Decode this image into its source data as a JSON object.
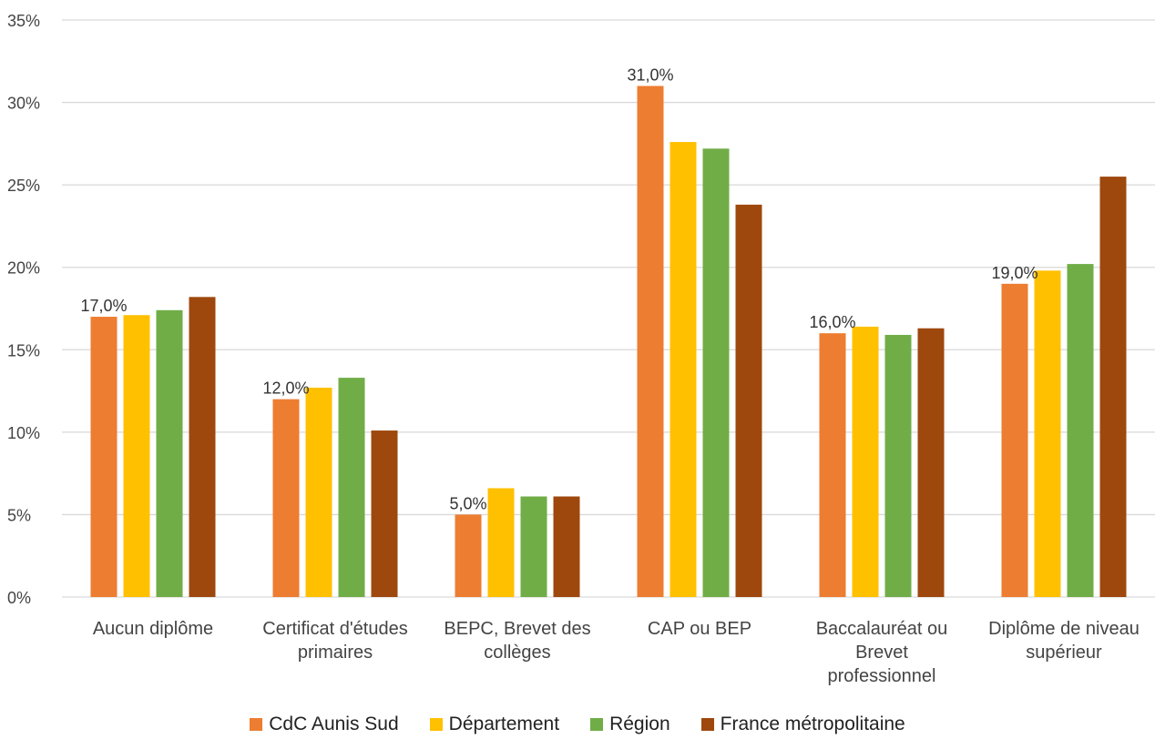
{
  "chart_data": {
    "type": "bar",
    "title": "",
    "xlabel": "",
    "ylabel": "",
    "ylim": [
      0,
      35
    ],
    "y_tick_labels": [
      "0%",
      "5%",
      "10%",
      "15%",
      "20%",
      "25%",
      "30%",
      "35%"
    ],
    "grid": true,
    "legend_position": "bottom",
    "categories": [
      "Aucun diplôme",
      "Certificat d'études primaires",
      "BEPC, Brevet des collèges",
      "CAP ou BEP",
      "Baccalauréat ou Brevet professionnel",
      "Diplôme de niveau supérieur"
    ],
    "category_label_lines": [
      [
        "Aucun diplôme"
      ],
      [
        "Certificat d'études",
        "primaires"
      ],
      [
        "BEPC, Brevet des",
        "collèges"
      ],
      [
        "CAP ou BEP"
      ],
      [
        "Baccalauréat ou",
        "Brevet",
        "professionnel"
      ],
      [
        "Diplôme de niveau",
        "supérieur"
      ]
    ],
    "series": [
      {
        "name": "CdC Aunis Sud",
        "color": "#ED7D31",
        "values": [
          17.0,
          12.0,
          5.0,
          31.0,
          16.0,
          19.0
        ],
        "data_labels": [
          "17,0%",
          "12,0%",
          "5,0%",
          "31,0%",
          "16,0%",
          "19,0%"
        ]
      },
      {
        "name": "Département",
        "color": "#FFC000",
        "values": [
          17.1,
          12.7,
          6.6,
          27.6,
          16.4,
          19.8
        ]
      },
      {
        "name": "Région",
        "color": "#70AD47",
        "values": [
          17.4,
          13.3,
          6.1,
          27.2,
          15.9,
          20.2
        ]
      },
      {
        "name": "France métropolitaine",
        "color": "#9E480E",
        "values": [
          18.2,
          10.1,
          6.1,
          23.8,
          16.3,
          25.5
        ]
      }
    ]
  }
}
